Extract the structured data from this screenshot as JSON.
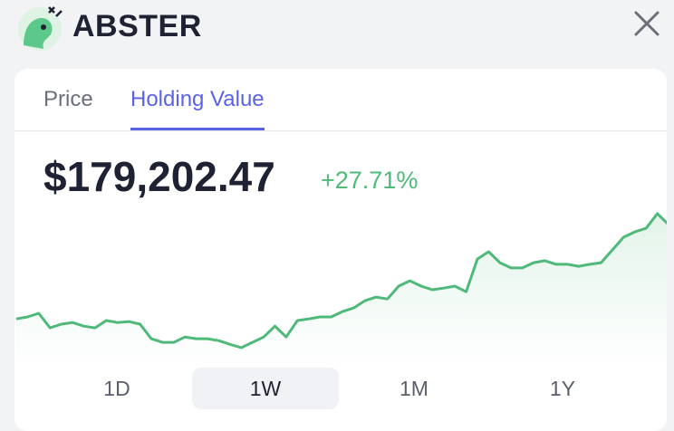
{
  "header": {
    "title": "ABSTER"
  },
  "tabs": {
    "items": [
      "Price",
      "Holding Value"
    ],
    "active": 1
  },
  "balance": {
    "value": "$179,202.47",
    "change": "+27.71%"
  },
  "chart_data": {
    "type": "line",
    "color": "#4fb97a",
    "values": [
      140300,
      141100,
      142600,
      136600,
      138100,
      138800,
      137300,
      136600,
      139600,
      138800,
      139200,
      138100,
      132100,
      130600,
      130600,
      132800,
      132100,
      132100,
      131300,
      129800,
      128400,
      130600,
      132800,
      137300,
      132800,
      139600,
      140300,
      141100,
      141100,
      143300,
      144800,
      147800,
      149300,
      148500,
      153800,
      156000,
      153800,
      152300,
      153000,
      153800,
      151500,
      165000,
      168000,
      163500,
      161300,
      161300,
      163500,
      164300,
      162800,
      162800,
      162000,
      162800,
      163500,
      168700,
      174000,
      176200,
      177700,
      183700,
      179202.47
    ]
  },
  "ranges": {
    "items": [
      "1D",
      "1W",
      "1M",
      "1Y"
    ],
    "active": 1
  }
}
